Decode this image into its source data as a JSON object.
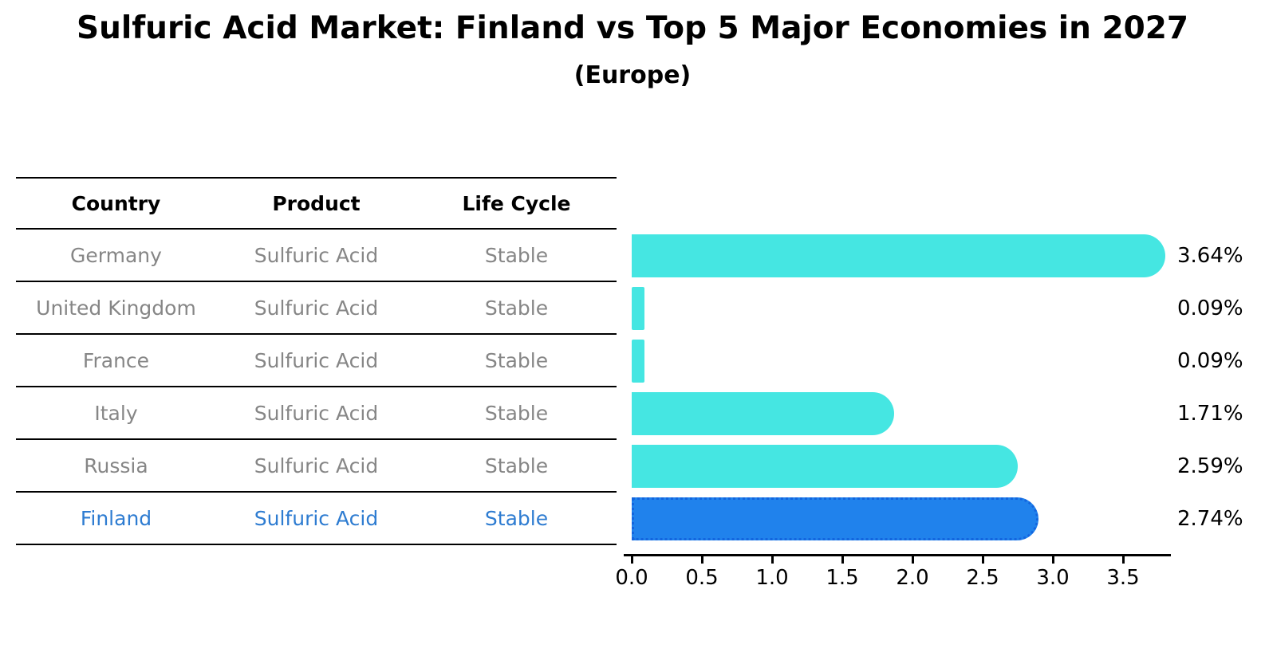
{
  "title": "Sulfuric Acid Market: Finland vs Top 5 Major Economies in 2027",
  "subtitle": "(Europe)",
  "table": {
    "headers": [
      "Country",
      "Product",
      "Life Cycle"
    ],
    "rows": [
      {
        "country": "Germany",
        "product": "Sulfuric Acid",
        "life_cycle": "Stable",
        "highlighted": false
      },
      {
        "country": "United Kingdom",
        "product": "Sulfuric Acid",
        "life_cycle": "Stable",
        "highlighted": false
      },
      {
        "country": "France",
        "product": "Sulfuric Acid",
        "life_cycle": "Stable",
        "highlighted": false
      },
      {
        "country": "Italy",
        "product": "Sulfuric Acid",
        "life_cycle": "Stable",
        "highlighted": false
      },
      {
        "country": "Russia",
        "product": "Sulfuric Acid",
        "life_cycle": "Stable",
        "highlighted": false
      },
      {
        "country": "Finland",
        "product": "Sulfuric Acid",
        "life_cycle": "Stable",
        "highlighted": true
      }
    ]
  },
  "chart_data": {
    "type": "bar",
    "orientation": "horizontal",
    "title": "Sulfuric Acid Market: Finland vs Top 5 Major Economies in 2027",
    "subtitle": "(Europe)",
    "categories": [
      "Germany",
      "United Kingdom",
      "France",
      "Italy",
      "Russia",
      "Finland"
    ],
    "values": [
      3.64,
      0.09,
      0.09,
      1.71,
      2.59,
      2.74
    ],
    "value_labels": [
      "3.64%",
      "0.09%",
      "0.09%",
      "1.71%",
      "2.59%",
      "2.74%"
    ],
    "highlight_index": 5,
    "xlabel": "",
    "ylabel": "",
    "xlim": [
      0.0,
      3.8
    ],
    "xtick_labels": [
      "0.0",
      "0.5",
      "1.0",
      "1.5",
      "2.0",
      "2.5",
      "3.0",
      "3.5"
    ],
    "grid": false,
    "legend": false
  },
  "colors": {
    "bar": "#45E6E2",
    "highlight_bar": "#2082EC",
    "highlight_border": "#1365DF",
    "highlight_text": "#2E7CD1",
    "cell_text": "#868686",
    "header_text": "#000000",
    "axis": "#000000"
  }
}
